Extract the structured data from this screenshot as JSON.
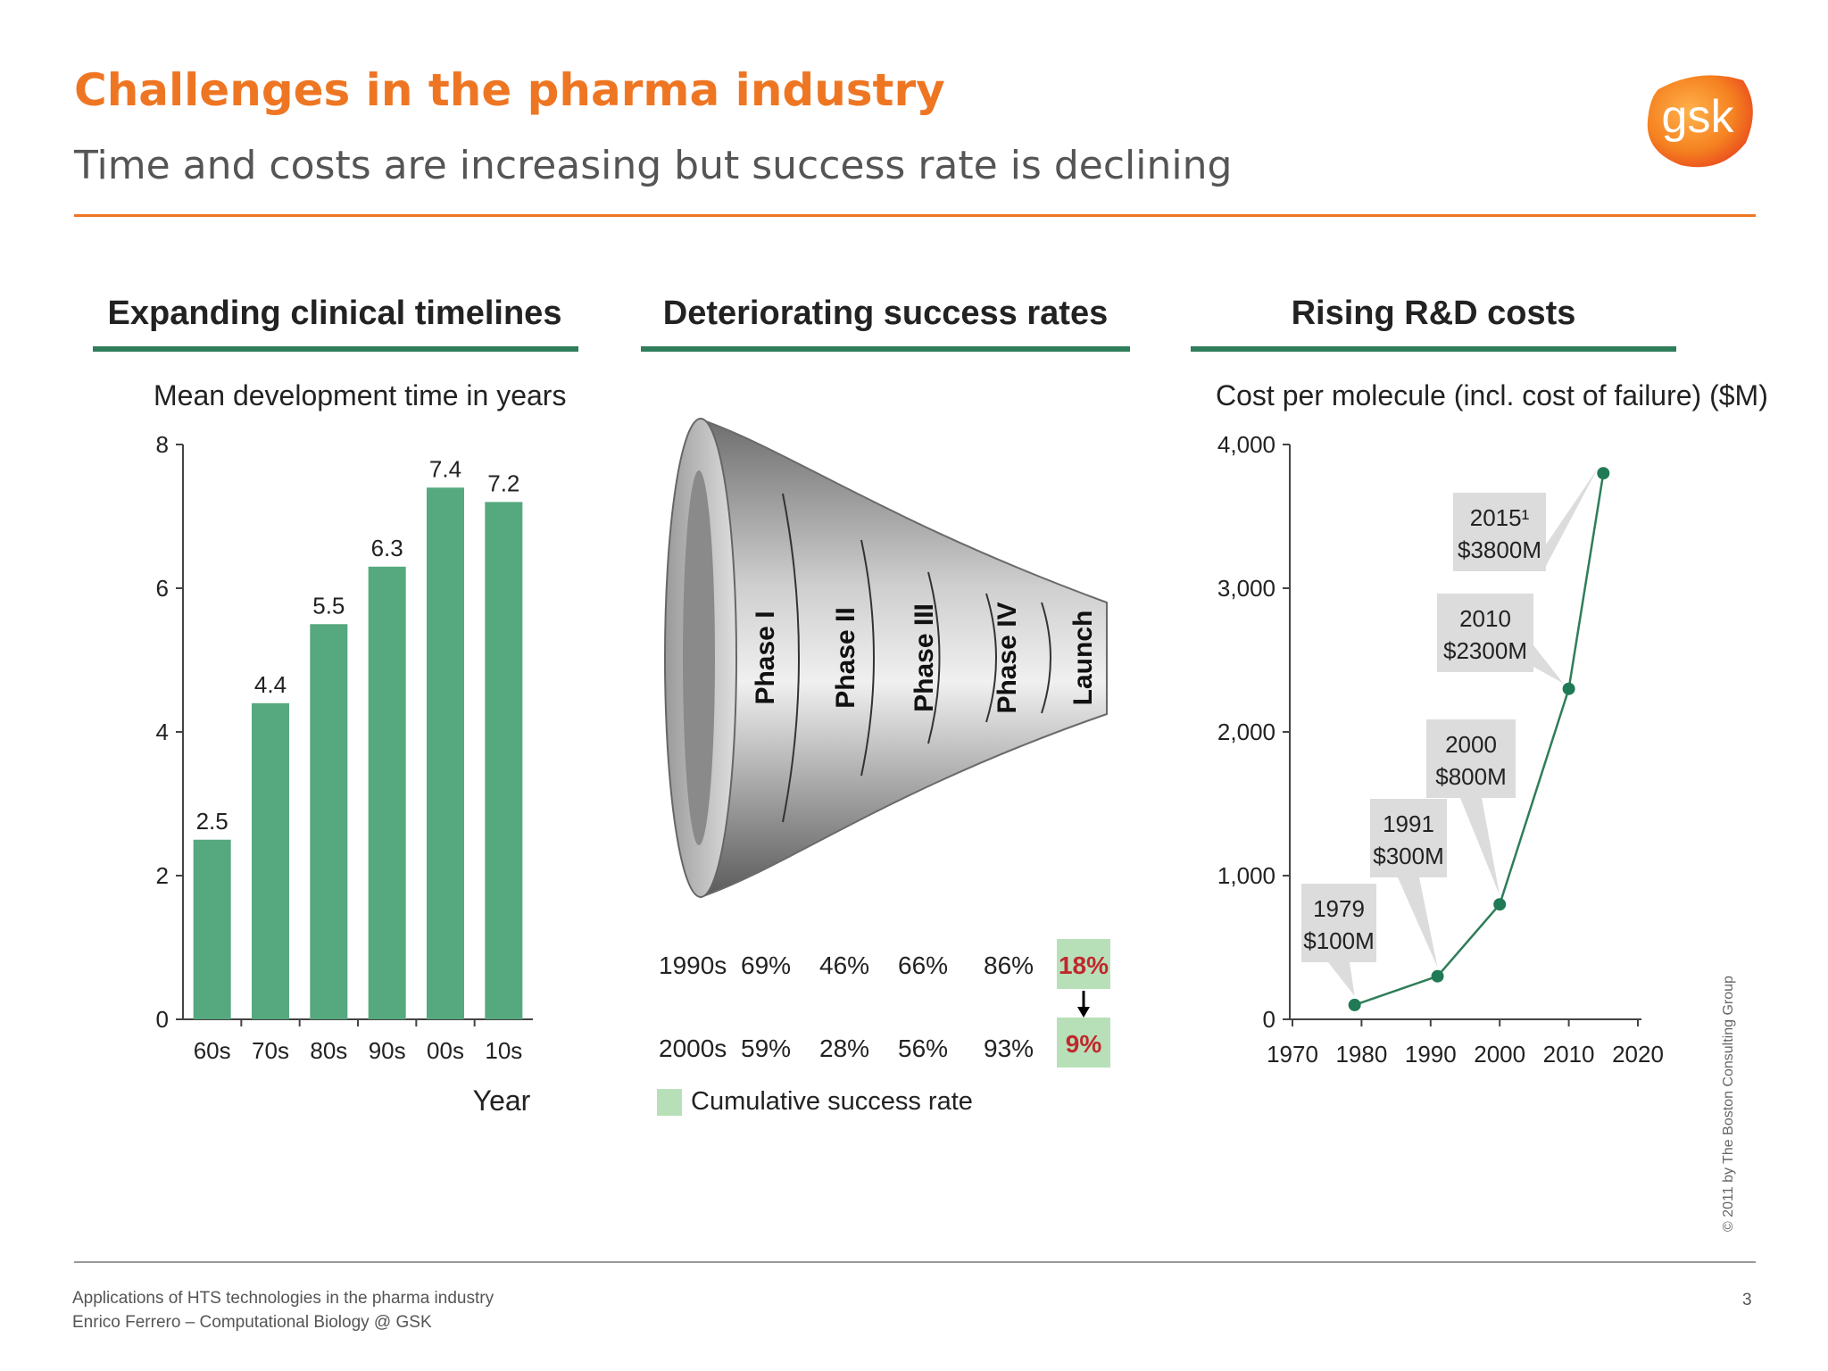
{
  "slide": {
    "title": "Challenges in the pharma industry",
    "subtitle": "Time and costs are increasing but success rate is declining",
    "logo_text": "gsk",
    "footer_line1": "Applications  of HTS technologies in the pharma industry",
    "footer_line2": "Enrico Ferrero – Computational Biology @ GSK",
    "page_number": "3",
    "copyright": "© 2011 by The Boston Consulting Group",
    "colors": {
      "accent": "#ee7623",
      "bar": "#56a87e",
      "rule": "#2f7d5a",
      "highlight": "#b8e0b8",
      "red": "#c0282d"
    }
  },
  "panels": {
    "timelines": {
      "heading": "Expanding clinical timelines"
    },
    "success": {
      "heading": "Deteriorating success rates",
      "phases": [
        "Phase I",
        "Phase II",
        "Phase III",
        "Phase IV",
        "Launch"
      ],
      "rows": [
        {
          "label": "1990s",
          "rates": [
            "69%",
            "46%",
            "66%",
            "86%"
          ],
          "cumulative": "18%"
        },
        {
          "label": "2000s",
          "rates": [
            "59%",
            "28%",
            "56%",
            "93%"
          ],
          "cumulative": "9%"
        }
      ],
      "legend": "Cumulative success rate"
    },
    "costs": {
      "heading": "Rising R&D costs"
    }
  },
  "chart_data": [
    {
      "type": "bar",
      "title": "Mean development time in years",
      "xlabel": "Year",
      "ylabel": "",
      "categories": [
        "60s",
        "70s",
        "80s",
        "90s",
        "00s",
        "10s"
      ],
      "values": [
        2.5,
        4.4,
        5.5,
        6.3,
        7.4,
        7.2
      ],
      "value_labels": [
        "2.5",
        "4.4",
        "5.5",
        "6.3",
        "7.4",
        "7.2"
      ],
      "ylim": [
        0,
        8
      ],
      "yticks": [
        0,
        2,
        4,
        6,
        8
      ]
    },
    {
      "type": "line",
      "title": "Cost per molecule (incl. cost of failure) ($M)",
      "xlabel": "",
      "ylabel": "",
      "x": [
        1979,
        1991,
        2000,
        2010,
        2015
      ],
      "y": [
        100,
        300,
        800,
        2300,
        3800
      ],
      "xlim": [
        1970,
        2020
      ],
      "ylim": [
        0,
        4000
      ],
      "xticks": [
        1970,
        1980,
        1990,
        2000,
        2010,
        2020
      ],
      "yticks": [
        0,
        1000,
        2000,
        3000,
        4000
      ],
      "ytick_labels": [
        "0",
        "1,000",
        "2,000",
        "3,000",
        "4,000"
      ],
      "annotations": [
        {
          "year": "1979",
          "cost": "$100M"
        },
        {
          "year": "1991",
          "cost": "$300M"
        },
        {
          "year": "2000",
          "cost": "$800M"
        },
        {
          "year": "2010",
          "cost": "$2300M"
        },
        {
          "year": "2015¹",
          "cost": "$3800M"
        }
      ]
    }
  ]
}
